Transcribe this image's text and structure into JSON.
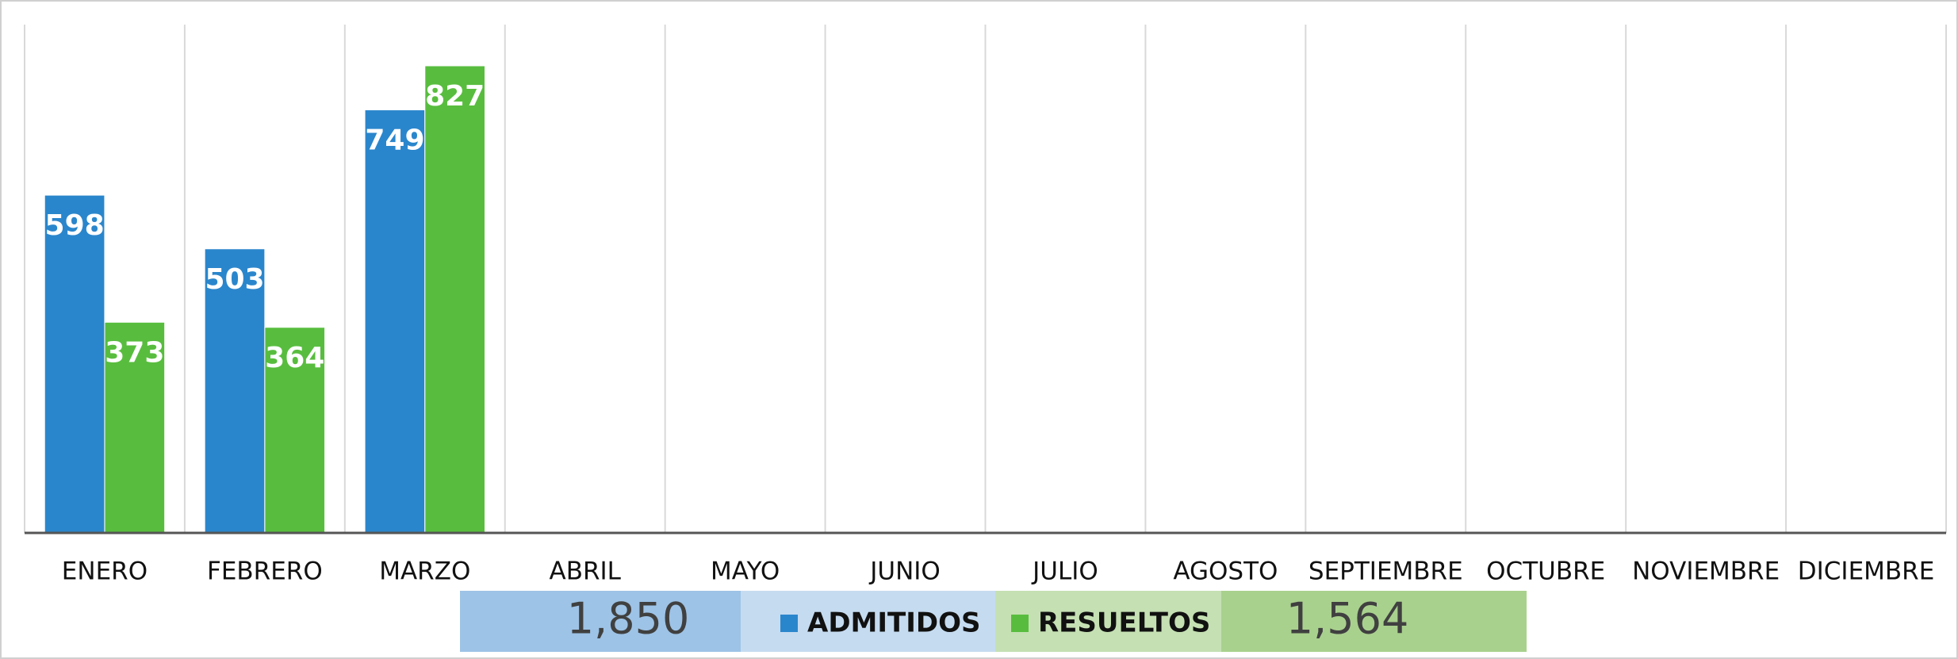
{
  "chart_data": {
    "type": "bar",
    "categories": [
      "ENERO",
      "FEBRERO",
      "MARZO",
      "ABRIL",
      "MAYO",
      "JUNIO",
      "JULIO",
      "AGOSTO",
      "SEPTIEMBRE",
      "OCTUBRE",
      "NOVIEMBRE",
      "DICIEMBRE"
    ],
    "series": [
      {
        "name": "ADMITIDOS",
        "color": "#2a86cc",
        "values": [
          598,
          503,
          749,
          null,
          null,
          null,
          null,
          null,
          null,
          null,
          null,
          null
        ],
        "total": {
          "value": 1850,
          "label": "1,850"
        }
      },
      {
        "name": "RESUELTOS",
        "color": "#58bd3e",
        "values": [
          373,
          364,
          827,
          null,
          null,
          null,
          null,
          null,
          null,
          null,
          null,
          null
        ],
        "total": {
          "value": 1564,
          "label": "1,564"
        }
      }
    ],
    "ylim": [
      0,
      900
    ],
    "legend": "bottom"
  }
}
